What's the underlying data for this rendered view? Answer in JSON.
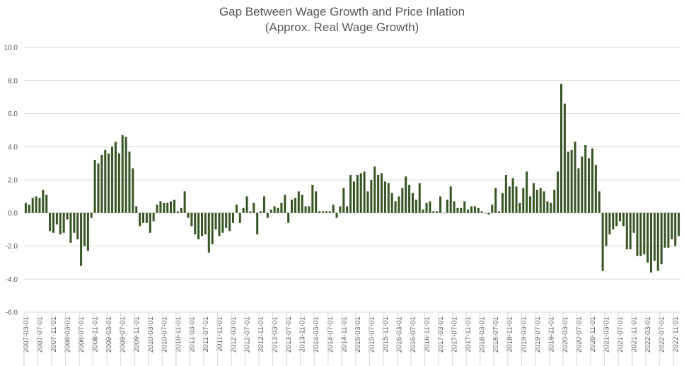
{
  "chart_data": {
    "type": "bar",
    "title": "Gap Between Wage Growth and Price Inlation",
    "subtitle": "(Approx. Real Wage Growth)",
    "xlabel": "",
    "ylabel": "",
    "ylim": [
      -6.0,
      10.0
    ],
    "yticks": [
      "10.0",
      "8.0",
      "6.0",
      "4.0",
      "2.0",
      "0.0",
      "-2.0",
      "-4.0",
      "-6.0"
    ],
    "ytick_values": [
      10,
      8,
      6,
      4,
      2,
      0,
      -2,
      -4,
      -6
    ],
    "grid": true,
    "bar_color": "#375623",
    "start_year": 2007,
    "start_month": 3,
    "xtick_labels": [
      "2007-03-01",
      "2007-07-01",
      "2007-11-01",
      "2008-03-01",
      "2008-07-01",
      "2008-11-01",
      "2009-03-01",
      "2009-07-01",
      "2009-11-01",
      "2010-03-01",
      "2010-07-01",
      "2010-11-01",
      "2011-03-01",
      "2011-07-01",
      "2011-11-01",
      "2012-03-01",
      "2012-07-01",
      "2012-11-01",
      "2013-03-01",
      "2013-07-01",
      "2013-11-01",
      "2014-03-01",
      "2014-07-01",
      "2014-11-01",
      "2015-03-01",
      "2015-07-01",
      "2015-11-01",
      "2016-03-01",
      "2016-07-01",
      "2016-11-01",
      "2017-03-01",
      "2017-07-01",
      "2017-11-01",
      "2018-03-01",
      "2018-07-01",
      "2018-11-01",
      "2019-03-01",
      "2019-07-01",
      "2019-11-01",
      "2020-03-01",
      "2020-07-01",
      "2020-11-01",
      "2021-03-01",
      "2021-07-01",
      "2021-11-01",
      "2022-03-01",
      "2022-07-01",
      "2022-11-01"
    ],
    "values": [
      0.6,
      0.5,
      0.9,
      1.0,
      0.9,
      1.4,
      1.1,
      -1.1,
      -1.2,
      -0.7,
      -1.3,
      -1.2,
      -0.4,
      -1.8,
      -1.2,
      -1.6,
      -3.2,
      -2.0,
      -2.3,
      -0.3,
      3.2,
      3.0,
      3.5,
      3.8,
      3.6,
      4.0,
      4.3,
      3.6,
      4.7,
      4.6,
      3.7,
      2.7,
      0.4,
      -0.8,
      -0.6,
      -0.6,
      -1.2,
      -0.5,
      0.5,
      0.7,
      0.6,
      0.6,
      0.7,
      0.8,
      0.1,
      0.3,
      1.3,
      -0.3,
      -0.8,
      -1.3,
      -1.6,
      -1.4,
      -1.3,
      -2.4,
      -1.9,
      -1.0,
      -1.4,
      -1.2,
      -0.9,
      -1.1,
      -0.6,
      0.5,
      -0.6,
      0.3,
      1.0,
      0.1,
      0.6,
      -1.3,
      0.1,
      1.0,
      -0.3,
      0.2,
      0.4,
      0.3,
      0.6,
      1.1,
      -0.6,
      0.8,
      0.9,
      1.3,
      1.1,
      0.4,
      0.4,
      1.7,
      1.3,
      0.1,
      0.1,
      0.1,
      0.1,
      0.5,
      -0.3,
      0.4,
      1.5,
      0.4,
      2.3,
      1.9,
      2.3,
      2.4,
      2.5,
      1.3,
      2.0,
      2.8,
      2.3,
      2.4,
      1.9,
      1.8,
      1.2,
      0.7,
      1.0,
      1.5,
      2.2,
      1.7,
      1.2,
      0.8,
      1.8,
      0.2,
      0.6,
      0.7,
      0.1,
      0.1,
      1.0,
      0.0,
      0.8,
      1.6,
      0.7,
      0.3,
      0.3,
      0.7,
      0.2,
      0.4,
      0.4,
      0.3,
      0.1,
      0.0,
      -0.1,
      0.5,
      1.5,
      0.1,
      1.2,
      2.3,
      1.6,
      2.1,
      1.6,
      0.6,
      1.5,
      2.5,
      1.0,
      1.8,
      1.4,
      1.5,
      1.3,
      0.7,
      0.6,
      1.4,
      2.5,
      7.8,
      6.6,
      3.7,
      3.8,
      4.3,
      2.7,
      3.4,
      4.1,
      3.3,
      3.9,
      2.9,
      1.3,
      -3.5,
      -2.0,
      -1.3,
      -1.0,
      -0.8,
      -0.5,
      -0.8,
      -2.2,
      -2.2,
      -1.2,
      -2.6,
      -2.6,
      -2.5,
      -3.0,
      -3.6,
      -2.9,
      -3.5,
      -3.1,
      -2.1,
      -2.1,
      -1.6,
      -2.0,
      -1.4
    ]
  }
}
